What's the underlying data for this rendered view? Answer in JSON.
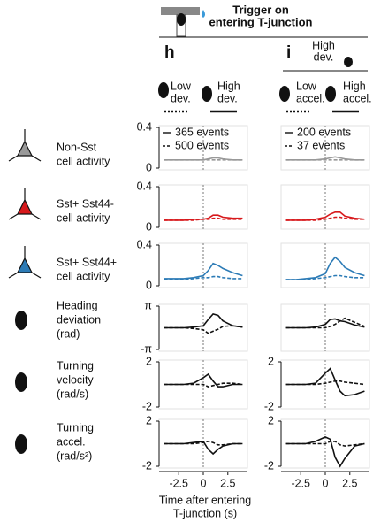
{
  "figure": {
    "title": [
      "Trigger on",
      "entering T-junction"
    ],
    "x_label": [
      "Time after entering",
      "T-junction (s)"
    ],
    "row_labels": [
      [
        "Non-Sst",
        "cell activity"
      ],
      [
        "Sst+ Sst44-",
        "cell activity"
      ],
      [
        "Sst+ Sst44+",
        "cell activity"
      ],
      [
        "Heading",
        "deviation",
        "(rad)"
      ],
      [
        "Turning",
        "velocity",
        "(rad/s)"
      ],
      [
        "Turning",
        "accel.",
        "(rad/s²)"
      ]
    ],
    "panels": [
      {
        "letter": "h",
        "conditions": [
          [
            "Low",
            "dev."
          ],
          [
            "High",
            "dev."
          ]
        ]
      },
      {
        "letter": "i",
        "condition_title": [
          "High",
          "dev."
        ],
        "conditions": [
          [
            "Low",
            "accel."
          ],
          [
            "High",
            "accel."
          ]
        ]
      }
    ]
  },
  "chart_data": [
    {
      "type": "line",
      "x": [
        -4,
        -3,
        -2,
        -1,
        0,
        0.5,
        1,
        1.5,
        2,
        3,
        4
      ],
      "xlim": [
        -4.5,
        4.5
      ],
      "ylim": [
        0,
        0.4
      ],
      "yticks": [
        0,
        0.4
      ],
      "series": [
        {
          "name": "365 events",
          "color": "#999999",
          "style": "solid",
          "values": [
            0.08,
            0.08,
            0.08,
            0.08,
            0.08,
            0.09,
            0.1,
            0.1,
            0.09,
            0.08,
            0.08
          ]
        },
        {
          "name": "500 events",
          "color": "#999999",
          "style": "dashed",
          "values": [
            0.08,
            0.08,
            0.08,
            0.08,
            0.08,
            0.08,
            0.08,
            0.08,
            0.08,
            0.08,
            0.08
          ]
        }
      ]
    },
    {
      "type": "line",
      "x": [
        -4,
        -3,
        -2,
        -1,
        0,
        0.5,
        1,
        1.5,
        2,
        3,
        4
      ],
      "xlim": [
        -4.5,
        4.5
      ],
      "ylim": [
        0,
        0.4
      ],
      "yticks": [
        0,
        0.4
      ],
      "series": [
        {
          "color": "#d7191c",
          "style": "solid",
          "values": [
            0.07,
            0.07,
            0.07,
            0.08,
            0.08,
            0.09,
            0.12,
            0.12,
            0.1,
            0.09,
            0.09
          ]
        },
        {
          "color": "#d7191c",
          "style": "dashed",
          "values": [
            0.07,
            0.07,
            0.07,
            0.07,
            0.08,
            0.08,
            0.09,
            0.09,
            0.08,
            0.08,
            0.08
          ]
        }
      ]
    },
    {
      "type": "line",
      "x": [
        -4,
        -3,
        -2,
        -1,
        0,
        0.5,
        1,
        1.5,
        2,
        3,
        4
      ],
      "xlim": [
        -4.5,
        4.5
      ],
      "ylim": [
        0,
        0.4
      ],
      "yticks": [
        0,
        0.4
      ],
      "series": [
        {
          "color": "#2c7bb6",
          "style": "solid",
          "values": [
            0.07,
            0.07,
            0.07,
            0.08,
            0.1,
            0.15,
            0.22,
            0.2,
            0.17,
            0.13,
            0.1
          ]
        },
        {
          "color": "#2c7bb6",
          "style": "dashed",
          "values": [
            0.06,
            0.06,
            0.06,
            0.07,
            0.08,
            0.08,
            0.09,
            0.09,
            0.08,
            0.07,
            0.07
          ]
        }
      ]
    },
    {
      "type": "line",
      "x": [
        -4,
        -3,
        -2,
        -1,
        0,
        0.5,
        1,
        1.5,
        2,
        3,
        4
      ],
      "xlim": [
        -4.5,
        4.5
      ],
      "ylim": [
        -3.1416,
        3.1416
      ],
      "yticks": [
        {
          "value": -3.1416,
          "label": "-π"
        },
        {
          "value": 3.1416,
          "label": "π"
        }
      ],
      "series": [
        {
          "color": "#111111",
          "style": "solid",
          "values": [
            0,
            0,
            0,
            0.1,
            0.3,
            1.2,
            2,
            1.8,
            1,
            0.3,
            0.1
          ]
        },
        {
          "color": "#111111",
          "style": "dashed",
          "values": [
            0,
            0,
            0,
            -0.1,
            -0.3,
            -0.8,
            -0.5,
            -0.2,
            0.2,
            0.3,
            0.1
          ]
        }
      ]
    },
    {
      "type": "line",
      "x": [
        -4,
        -3,
        -2,
        -1,
        0,
        0.5,
        1,
        1.5,
        2,
        3,
        4
      ],
      "xlim": [
        -4.5,
        4.5
      ],
      "ylim": [
        -2,
        2
      ],
      "yticks": [
        -2,
        2
      ],
      "series": [
        {
          "color": "#111111",
          "style": "solid",
          "values": [
            0,
            0,
            0,
            0.1,
            0.6,
            0.9,
            0.3,
            -0.2,
            -0.2,
            0,
            0
          ]
        },
        {
          "color": "#111111",
          "style": "dashed",
          "values": [
            0,
            0,
            0,
            0,
            0,
            -0.2,
            -0.1,
            0,
            0.1,
            0.1,
            0
          ]
        }
      ]
    },
    {
      "type": "line",
      "x": [
        -4,
        -3,
        -2,
        -1,
        0,
        0.5,
        1,
        1.5,
        2,
        3,
        4
      ],
      "xlim": [
        -4.5,
        4.5
      ],
      "ylim": [
        -2,
        2
      ],
      "yticks": [
        -2,
        2
      ],
      "xticks": [
        -2.5,
        0,
        2.5
      ],
      "series": [
        {
          "color": "#111111",
          "style": "solid",
          "values": [
            0,
            0,
            0,
            0.1,
            0.2,
            -0.5,
            -0.9,
            -0.5,
            -0.2,
            0,
            0
          ]
        },
        {
          "color": "#111111",
          "style": "dashed",
          "values": [
            0,
            0,
            0,
            0,
            0.1,
            0.2,
            0.1,
            -0.1,
            -0.1,
            0,
            0
          ]
        }
      ]
    },
    {
      "type": "line",
      "x": [
        -4,
        -3,
        -2,
        -1,
        0,
        0.5,
        1,
        1.5,
        2,
        3,
        4
      ],
      "xlim": [
        -4.5,
        4.5
      ],
      "ylim": [
        0,
        0.4
      ],
      "series": [
        {
          "name": "200 events",
          "color": "#999999",
          "style": "solid",
          "values": [
            0.08,
            0.08,
            0.08,
            0.08,
            0.09,
            0.1,
            0.11,
            0.1,
            0.09,
            0.08,
            0.08
          ]
        },
        {
          "name": "37 events",
          "color": "#999999",
          "style": "dashed",
          "values": [
            0.08,
            0.08,
            0.08,
            0.08,
            0.08,
            0.08,
            0.08,
            0.08,
            0.08,
            0.08,
            0.08
          ]
        }
      ]
    },
    {
      "type": "line",
      "x": [
        -4,
        -3,
        -2,
        -1,
        0,
        0.5,
        1,
        1.5,
        2,
        3,
        4
      ],
      "xlim": [
        -4.5,
        4.5
      ],
      "ylim": [
        0,
        0.4
      ],
      "series": [
        {
          "color": "#d7191c",
          "style": "solid",
          "values": [
            0.07,
            0.07,
            0.07,
            0.08,
            0.1,
            0.13,
            0.15,
            0.15,
            0.11,
            0.09,
            0.08
          ]
        },
        {
          "color": "#d7191c",
          "style": "dashed",
          "values": [
            0.07,
            0.07,
            0.07,
            0.07,
            0.08,
            0.09,
            0.1,
            0.1,
            0.09,
            0.08,
            0.08
          ]
        }
      ]
    },
    {
      "type": "line",
      "x": [
        -4,
        -3,
        -2,
        -1,
        0,
        0.5,
        1,
        1.5,
        2,
        3,
        4
      ],
      "xlim": [
        -4.5,
        4.5
      ],
      "ylim": [
        0,
        0.4
      ],
      "series": [
        {
          "color": "#2c7bb6",
          "style": "solid",
          "values": [
            0.06,
            0.06,
            0.07,
            0.08,
            0.12,
            0.22,
            0.28,
            0.24,
            0.18,
            0.13,
            0.1
          ]
        },
        {
          "color": "#2c7bb6",
          "style": "dashed",
          "values": [
            0.06,
            0.06,
            0.06,
            0.07,
            0.08,
            0.09,
            0.1,
            0.1,
            0.09,
            0.08,
            0.08
          ]
        }
      ]
    },
    {
      "type": "line",
      "x": [
        -4,
        -3,
        -2,
        -1,
        0,
        0.5,
        1,
        1.5,
        2,
        3,
        4
      ],
      "xlim": [
        -4.5,
        4.5
      ],
      "ylim": [
        -3.1416,
        3.1416
      ],
      "series": [
        {
          "color": "#111111",
          "style": "solid",
          "values": [
            0,
            0,
            0,
            0.1,
            0.5,
            1.2,
            1.3,
            1,
            0.9,
            0.4,
            0.1
          ]
        },
        {
          "color": "#111111",
          "style": "dashed",
          "values": [
            0,
            0,
            0,
            0,
            0,
            0.2,
            0.5,
            1,
            1.4,
            0.8,
            0.2
          ]
        }
      ]
    },
    {
      "type": "line",
      "x": [
        -4,
        -3,
        -2,
        -1,
        0,
        0.5,
        1,
        1.5,
        2,
        3,
        4
      ],
      "xlim": [
        -4.5,
        4.5
      ],
      "ylim": [
        -2,
        2
      ],
      "yticks": [
        -2,
        2
      ],
      "series": [
        {
          "color": "#111111",
          "style": "solid",
          "values": [
            0,
            0,
            0,
            0.1,
            1,
            1.4,
            0.4,
            -0.6,
            -1,
            -0.9,
            -0.6
          ]
        },
        {
          "color": "#111111",
          "style": "dashed",
          "values": [
            0,
            0,
            0,
            0,
            0.1,
            0.2,
            0.3,
            0.3,
            0.2,
            0.1,
            0
          ]
        }
      ]
    },
    {
      "type": "line",
      "x": [
        -4,
        -3,
        -2,
        -1,
        0,
        0.5,
        1,
        1.5,
        2,
        3,
        4
      ],
      "xlim": [
        -4.5,
        4.5
      ],
      "ylim": [
        -2,
        2
      ],
      "yticks": [
        -2,
        2
      ],
      "xticks": [
        -2.5,
        0,
        2.5
      ],
      "series": [
        {
          "color": "#111111",
          "style": "solid",
          "values": [
            0,
            0,
            0,
            0.2,
            0.6,
            0.4,
            -1.2,
            -2,
            -1.3,
            -0.2,
            0
          ]
        },
        {
          "color": "#111111",
          "style": "dashed",
          "values": [
            0,
            0,
            0,
            0,
            0,
            0.2,
            0.2,
            -0.1,
            -0.2,
            -0.1,
            0
          ]
        }
      ]
    }
  ]
}
